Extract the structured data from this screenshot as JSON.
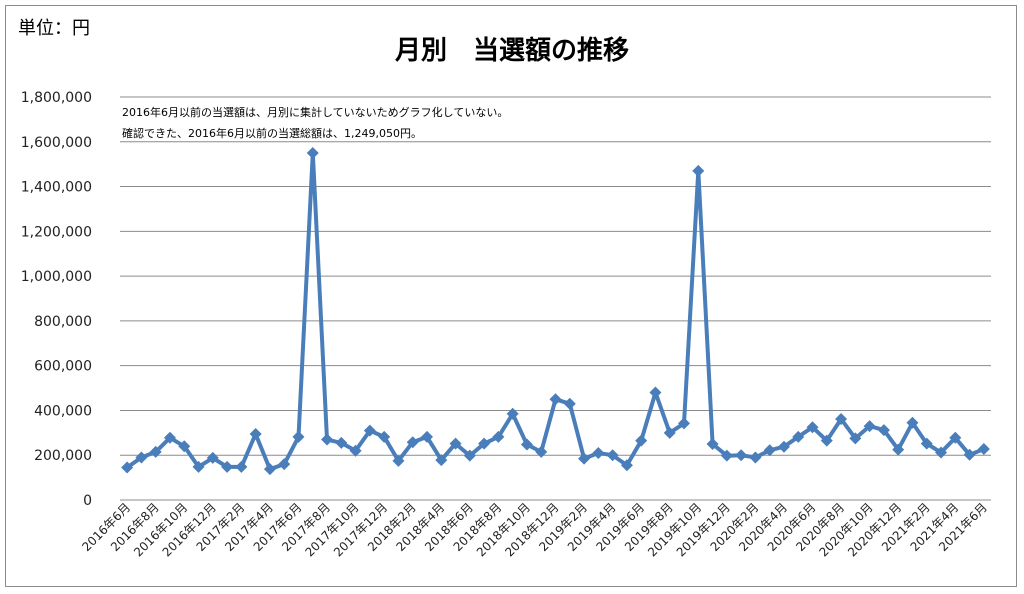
{
  "unit_label": "単位：円",
  "notes": [
    "2016年6月以前の当選額は、月別に集計していないためグラフ化していない。",
    "確認できた、2016年6月以前の当選総額は、1,249,050円。"
  ],
  "chart_data": {
    "type": "line",
    "title": "月別　当選額の推移",
    "xlabel": "",
    "ylabel": "",
    "ylim": [
      0,
      1800000
    ],
    "yticks": [
      "1,800,000",
      "1,600,000",
      "1,400,000",
      "1,200,000",
      "1,000,000",
      "800,000",
      "600,000",
      "400,000",
      "200,000",
      "0"
    ],
    "ytick_values": [
      1800000,
      1600000,
      1400000,
      1200000,
      1000000,
      800000,
      600000,
      400000,
      200000,
      0
    ],
    "x": [
      "2016年6月",
      "2016年7月",
      "2016年8月",
      "2016年9月",
      "2016年10月",
      "2016年11月",
      "2016年12月",
      "2017年1月",
      "2017年2月",
      "2017年3月",
      "2017年4月",
      "2017年5月",
      "2017年6月",
      "2017年7月",
      "2017年8月",
      "2017年9月",
      "2017年10月",
      "2017年11月",
      "2017年12月",
      "2018年1月",
      "2018年2月",
      "2018年3月",
      "2018年4月",
      "2018年5月",
      "2018年6月",
      "2018年7月",
      "2018年8月",
      "2018年9月",
      "2018年10月",
      "2018年11月",
      "2018年12月",
      "2019年1月",
      "2019年2月",
      "2019年3月",
      "2019年4月",
      "2019年5月",
      "2019年6月",
      "2019年7月",
      "2019年8月",
      "2019年9月",
      "2019年10月",
      "2019年11月",
      "2019年12月",
      "2020年1月",
      "2020年2月",
      "2020年3月",
      "2020年4月",
      "2020年5月",
      "2020年6月",
      "2020年7月",
      "2020年8月",
      "2020年9月",
      "2020年10月",
      "2020年11月",
      "2020年12月",
      "2021年1月",
      "2021年2月",
      "2021年3月",
      "2021年4月",
      "2021年5月",
      "2021年6月"
    ],
    "xtick_labels": [
      "2016年6月",
      "2016年8月",
      "2016年10月",
      "2016年12月",
      "2017年2月",
      "2017年4月",
      "2017年6月",
      "2017年8月",
      "2017年10月",
      "2017年12月",
      "2018年2月",
      "2018年4月",
      "2018年6月",
      "2018年8月",
      "2018年10月",
      "2018年12月",
      "2019年2月",
      "2019年4月",
      "2019年6月",
      "2019年8月",
      "2019年10月",
      "2019年12月",
      "2020年2月",
      "2020年4月",
      "2020年6月",
      "2020年8月",
      "2020年10月",
      "2020年12月",
      "2021年2月",
      "2021年4月",
      "2021年6月"
    ],
    "series": [
      {
        "color": "#4a7ebb",
        "values": [
          145000,
          190000,
          215000,
          278000,
          240000,
          148000,
          188000,
          148000,
          148000,
          295000,
          138000,
          160000,
          282000,
          1550000,
          270000,
          255000,
          220000,
          310000,
          282000,
          175000,
          258000,
          282000,
          178000,
          252000,
          198000,
          252000,
          282000,
          385000,
          248000,
          215000,
          450000,
          430000,
          185000,
          210000,
          200000,
          155000,
          265000,
          480000,
          300000,
          342000,
          1470000,
          250000,
          198000,
          200000,
          190000,
          222000,
          238000,
          282000,
          325000,
          265000,
          362000,
          275000,
          330000,
          312000,
          225000,
          345000,
          252000,
          212000,
          278000,
          202000,
          228000
        ]
      }
    ],
    "grid": true,
    "legend": "none"
  }
}
